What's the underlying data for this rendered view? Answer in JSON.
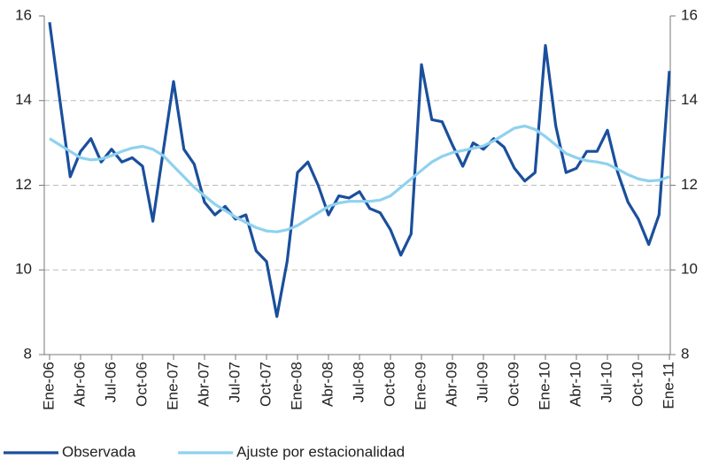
{
  "chart_data": {
    "type": "line",
    "categories": [
      "Ene-06",
      null,
      null,
      "Abr-06",
      null,
      null,
      "Jul-06",
      null,
      null,
      "Oct-06",
      null,
      null,
      "Ene-07",
      null,
      null,
      "Abr-07",
      null,
      null,
      "Jul-07",
      null,
      null,
      "Oct-07",
      null,
      null,
      "Ene-08",
      null,
      null,
      "Abr-08",
      null,
      null,
      "Jul-08",
      null,
      null,
      "Oct-08",
      null,
      null,
      "Ene-09",
      null,
      null,
      "Abr-09",
      null,
      null,
      "Jul-09",
      null,
      null,
      "Oct-09",
      null,
      null,
      "Ene-10",
      null,
      null,
      "Abr-10",
      null,
      null,
      "Jul-10",
      null,
      null,
      "Oct-10",
      null,
      null,
      "Ene-11"
    ],
    "series": [
      {
        "name": "Observada",
        "color": "#1a4f9c",
        "values": [
          15.85,
          14.0,
          12.2,
          12.8,
          13.1,
          12.55,
          12.85,
          12.55,
          12.65,
          12.45,
          11.15,
          12.8,
          14.45,
          12.85,
          12.5,
          11.6,
          11.3,
          11.5,
          11.2,
          11.3,
          10.45,
          10.2,
          8.9,
          10.2,
          12.3,
          12.55,
          12.0,
          11.3,
          11.75,
          11.7,
          11.85,
          11.45,
          11.35,
          10.95,
          10.35,
          10.85,
          14.85,
          13.55,
          13.5,
          12.95,
          12.45,
          13.0,
          12.85,
          13.1,
          12.9,
          12.4,
          12.1,
          12.3,
          15.3,
          13.4,
          12.3,
          12.4,
          12.8,
          12.8,
          13.3,
          12.3,
          11.6,
          11.2,
          10.6,
          11.3,
          14.7
        ]
      },
      {
        "name": "Ajuste por estacionalidad",
        "color": "#8fd1ef",
        "values": [
          13.1,
          12.95,
          12.8,
          12.65,
          12.6,
          12.62,
          12.7,
          12.8,
          12.88,
          12.92,
          12.85,
          12.7,
          12.45,
          12.2,
          11.95,
          11.75,
          11.55,
          11.4,
          11.25,
          11.12,
          11.0,
          10.92,
          10.9,
          10.95,
          11.05,
          11.2,
          11.35,
          11.5,
          11.58,
          11.62,
          11.62,
          11.62,
          11.65,
          11.75,
          11.95,
          12.15,
          12.35,
          12.55,
          12.68,
          12.77,
          12.82,
          12.87,
          12.93,
          13.05,
          13.2,
          13.35,
          13.4,
          13.32,
          13.15,
          12.95,
          12.75,
          12.65,
          12.58,
          12.55,
          12.5,
          12.38,
          12.25,
          12.15,
          12.1,
          12.12,
          12.2
        ]
      }
    ],
    "ylim": [
      8,
      16
    ],
    "yticks": [
      8,
      10,
      12,
      14,
      16
    ],
    "y2lim": [
      8,
      16
    ],
    "y2ticks": [
      8,
      10,
      12,
      14,
      16
    ],
    "grid": true,
    "legend": "bottom"
  }
}
